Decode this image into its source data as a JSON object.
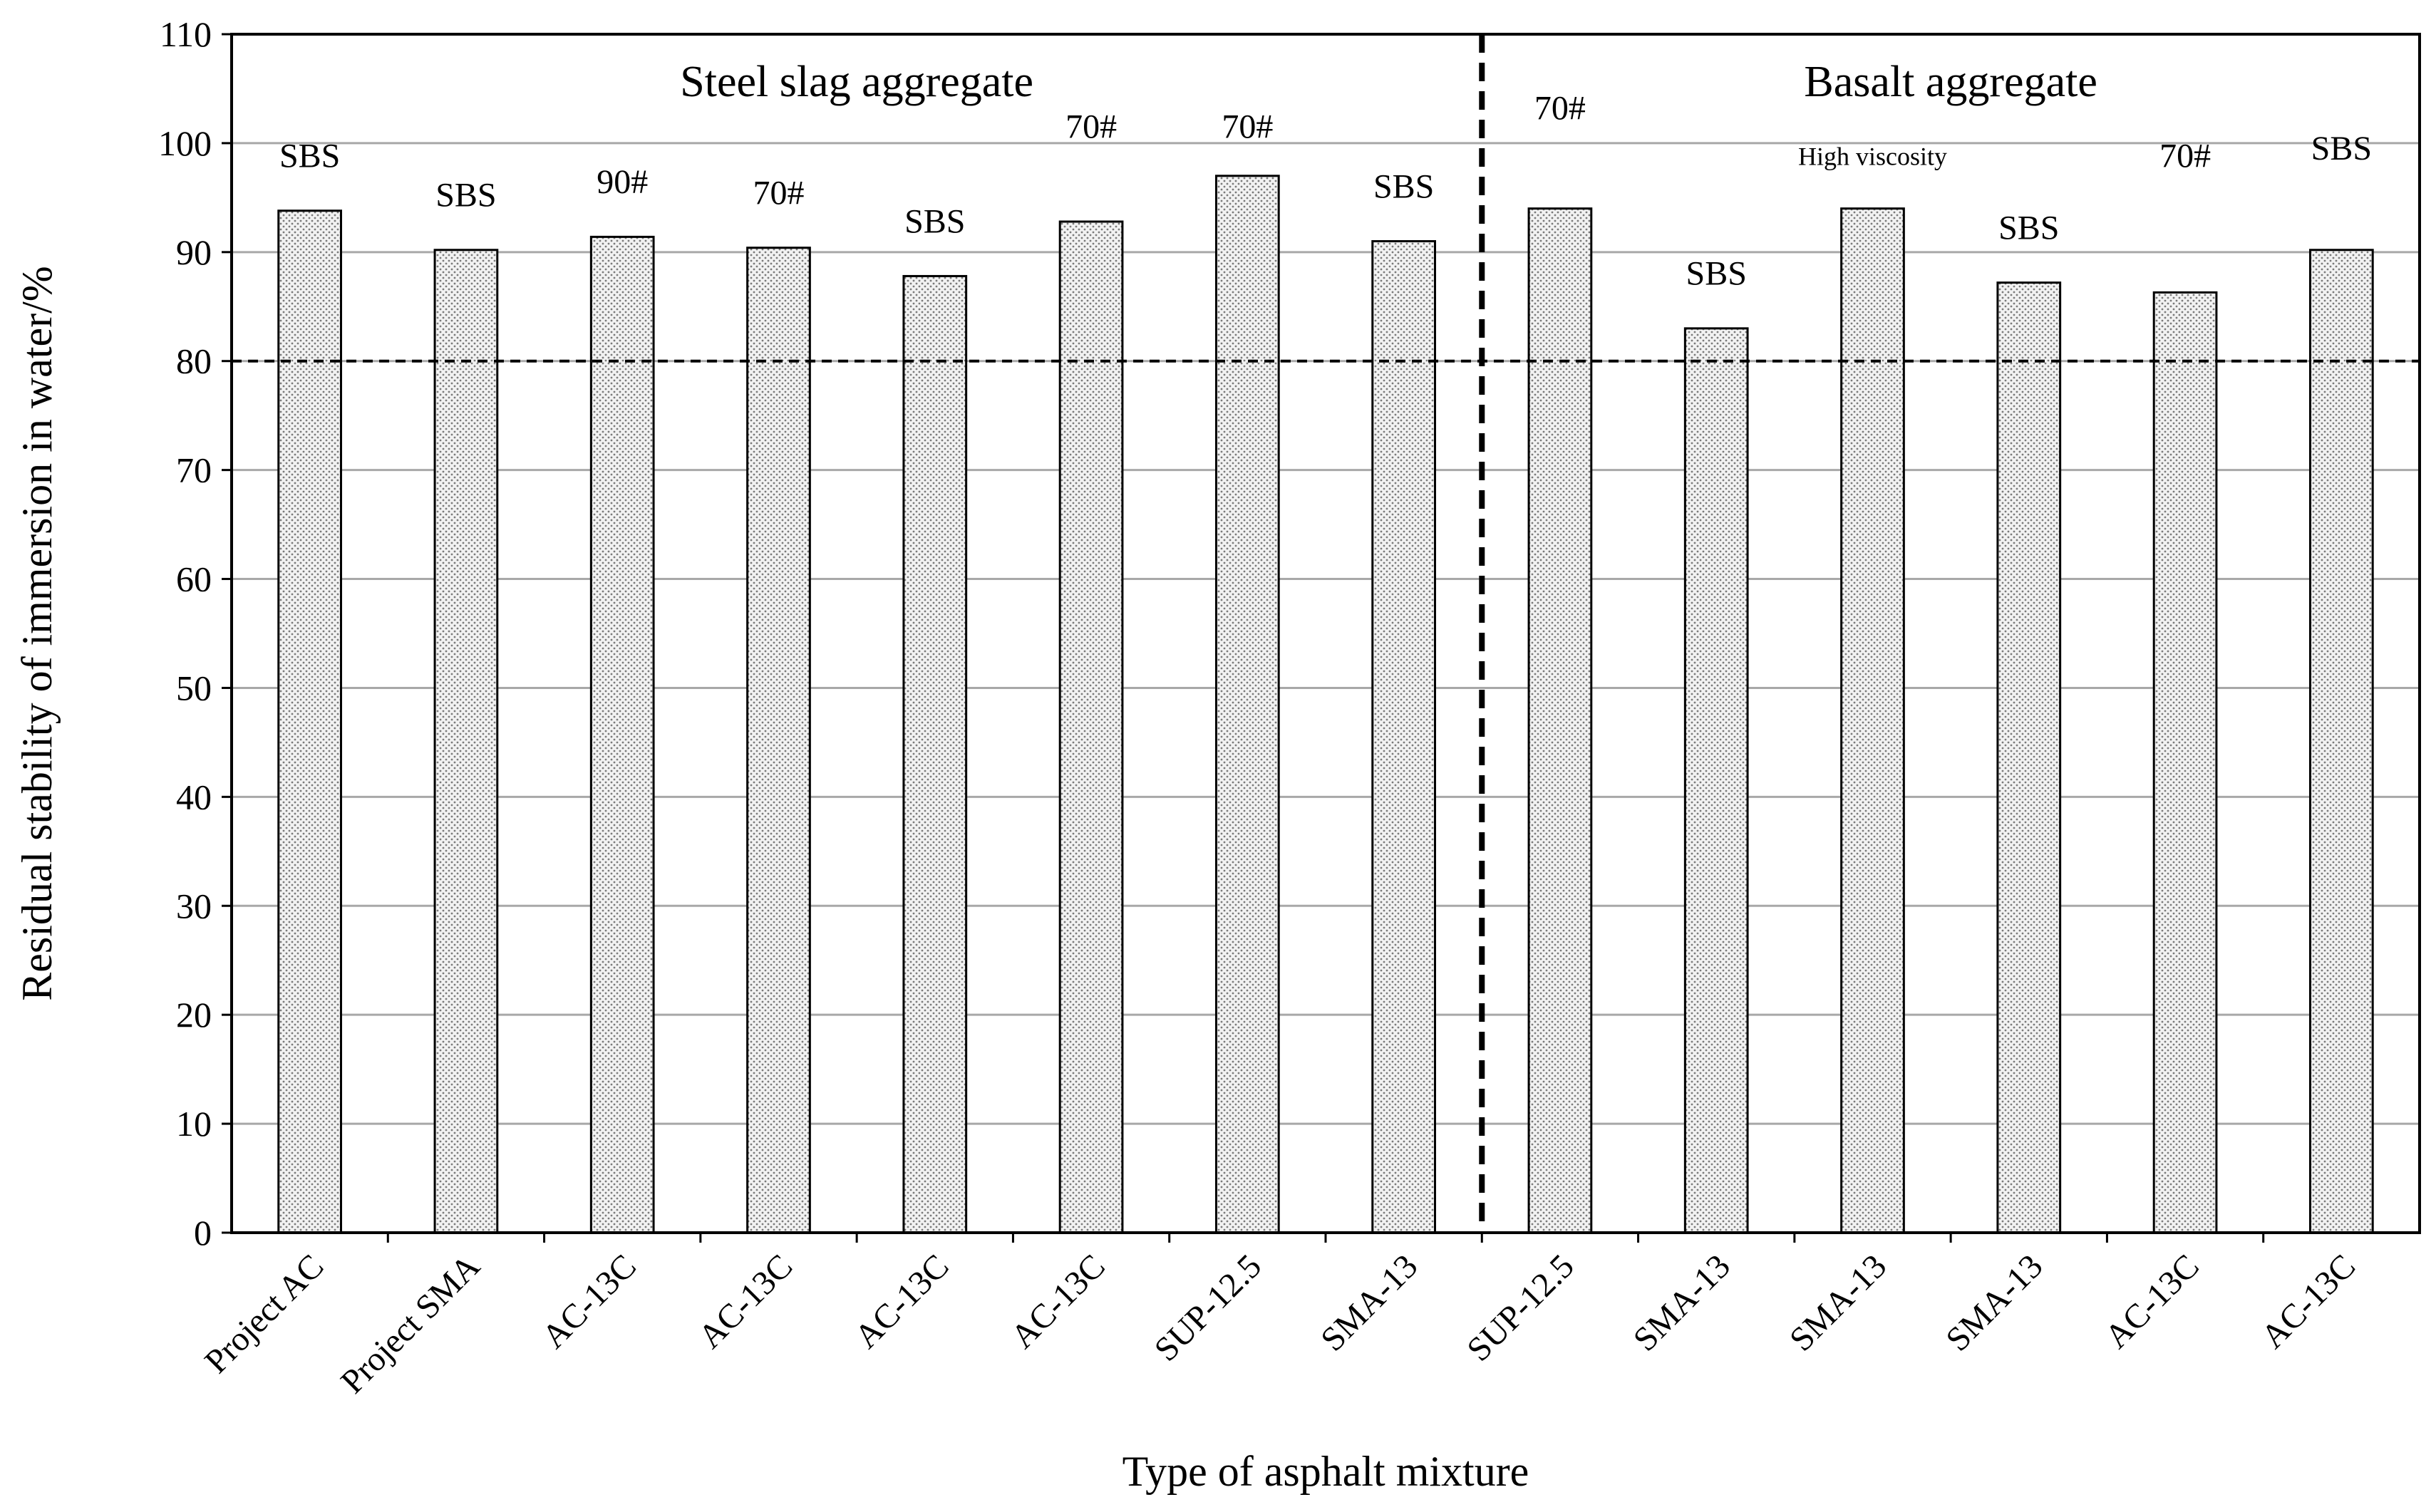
{
  "chart_data": {
    "type": "bar",
    "title": "",
    "xlabel": "Type of asphalt mixture",
    "ylabel": "Residual stability of immersion in water/%",
    "ylim": [
      0,
      110
    ],
    "yticks": [
      0,
      10,
      20,
      30,
      40,
      50,
      60,
      70,
      80,
      90,
      100,
      110
    ],
    "grid": true,
    "threshold": 80,
    "groups": [
      {
        "label": "Steel slag aggregate",
        "start": 0,
        "end": 7
      },
      {
        "label": "Basalt aggregate",
        "start": 8,
        "end": 13
      }
    ],
    "categories": [
      "Project AC",
      "Project SMA",
      "AC-13C",
      "AC-13C",
      "AC-13C",
      "AC-13C",
      "SUP-12.5",
      "SMA-13",
      "SUP-12.5",
      "SMA-13",
      "SMA-13",
      "SMA-13",
      "AC-13C",
      "AC-13C"
    ],
    "values": [
      93.8,
      90.2,
      91.4,
      90.4,
      87.8,
      92.8,
      97.0,
      91.0,
      94.0,
      83.0,
      94.0,
      87.2,
      86.3,
      90.2
    ],
    "bar_labels": [
      "SBS",
      "SBS",
      "90#",
      "70#",
      "SBS",
      "70#",
      "70#",
      "SBS",
      "70#",
      "SBS",
      "High viscosity",
      "SBS",
      "70#",
      "SBS"
    ],
    "bar_label_values": [
      97.8,
      94.2,
      95.4,
      94.4,
      91.8,
      100.5,
      100.5,
      95.0,
      102.2,
      87.0,
      98.0,
      91.2,
      97.8,
      98.5
    ]
  }
}
